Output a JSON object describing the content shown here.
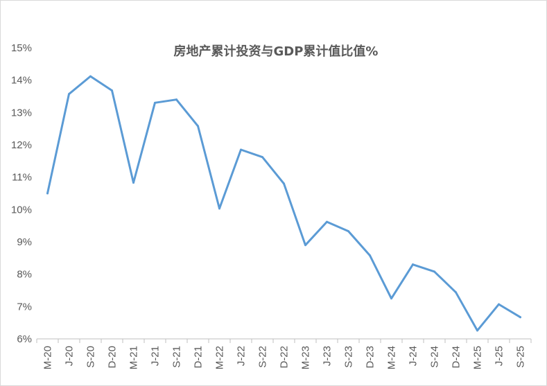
{
  "chart_data": {
    "type": "line",
    "title": "房地产累计投资与GDP累计值比值%",
    "xlabel": "",
    "ylabel": "",
    "categories": [
      "M-20",
      "J-20",
      "S-20",
      "D-20",
      "M-21",
      "J-21",
      "S-21",
      "D-21",
      "M-22",
      "J-22",
      "S-22",
      "D-22",
      "M-23",
      "J-23",
      "S-23",
      "D-23",
      "M-24",
      "J-24",
      "S-24",
      "D-24",
      "M-25",
      "J-25",
      "S-25"
    ],
    "series": [
      {
        "values": [
          10.5,
          13.57,
          14.12,
          13.68,
          10.83,
          13.3,
          13.4,
          12.58,
          10.03,
          11.85,
          11.62,
          10.8,
          8.9,
          9.62,
          9.33,
          8.58,
          7.25,
          8.3,
          8.08,
          7.44,
          6.26,
          7.07,
          6.67
        ],
        "color": "#5b9bd5"
      }
    ],
    "ylim": [
      6,
      15
    ],
    "yticks": [
      "6%",
      "7%",
      "8%",
      "9%",
      "10%",
      "11%",
      "12%",
      "13%",
      "14%",
      "15%"
    ],
    "grid": false,
    "legend": "none"
  }
}
